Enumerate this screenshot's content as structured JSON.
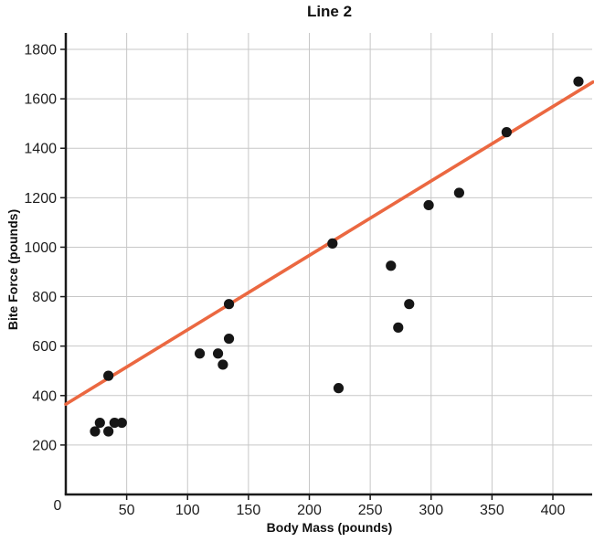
{
  "figure": {
    "background": "#ffffff"
  },
  "chart_data": {
    "type": "scatter",
    "title": "Line 2",
    "xlabel": "Body Mass (pounds)",
    "ylabel": "Bite Force (pounds)",
    "xlim": [
      0,
      433
    ],
    "ylim": [
      0,
      1870
    ],
    "x_ticks": [
      50,
      100,
      150,
      200,
      250,
      300,
      350,
      400
    ],
    "y_ticks": [
      200,
      400,
      600,
      800,
      1000,
      1200,
      1400,
      1600,
      1800
    ],
    "origin_label": "0",
    "grid": true,
    "legend_position": "none",
    "points": [
      {
        "x": 24,
        "y": 255
      },
      {
        "x": 28,
        "y": 290
      },
      {
        "x": 35,
        "y": 255
      },
      {
        "x": 40,
        "y": 290
      },
      {
        "x": 46,
        "y": 290
      },
      {
        "x": 35,
        "y": 480
      },
      {
        "x": 110,
        "y": 570
      },
      {
        "x": 125,
        "y": 570
      },
      {
        "x": 129,
        "y": 525
      },
      {
        "x": 134,
        "y": 630
      },
      {
        "x": 134,
        "y": 770
      },
      {
        "x": 219,
        "y": 1015
      },
      {
        "x": 224,
        "y": 430
      },
      {
        "x": 267,
        "y": 925
      },
      {
        "x": 273,
        "y": 675
      },
      {
        "x": 282,
        "y": 770
      },
      {
        "x": 298,
        "y": 1170
      },
      {
        "x": 323,
        "y": 1220
      },
      {
        "x": 362,
        "y": 1465
      },
      {
        "x": 421,
        "y": 1670
      }
    ],
    "trend_line": {
      "label": "Line 2",
      "x1": 0,
      "y1": 365,
      "x2": 433,
      "y2": 1668,
      "slope_approx": 3.0,
      "intercept_approx": 365,
      "color": "#EB6841",
      "width": 3.6
    },
    "point_color": "#161616",
    "point_radius": 5.6,
    "grid_color": "#c7c7c7",
    "axis_color": "#1a1a1a",
    "tick_label_color": "#1d1d1d"
  }
}
